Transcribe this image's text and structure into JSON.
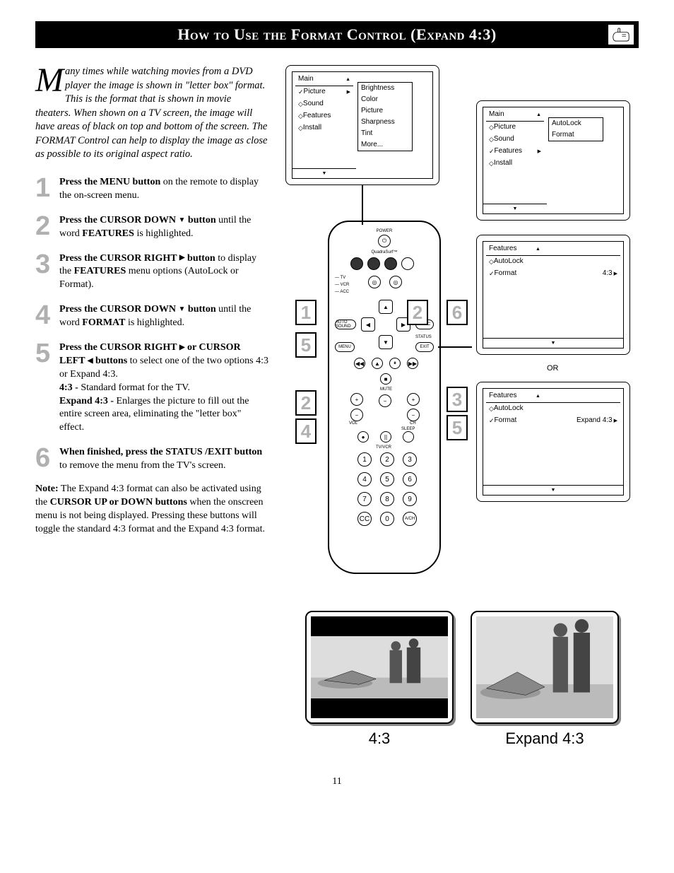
{
  "header": {
    "title": "How to Use the Format Control (Expand 4:3)"
  },
  "intro": {
    "dropcap": "M",
    "text": "any times while watching movies from a DVD player the image is shown in \"letter box\" format. This is the format that is shown in movie theaters. When shown on a TV screen, the image will have areas of black on top and bottom of the screen. The FORMAT Control can help to display the image as close as possible to its original aspect ratio."
  },
  "steps": [
    {
      "num": "1",
      "html": "<span class=\"bold\">Press the MENU button</span> on the remote to display the on-screen menu."
    },
    {
      "num": "2",
      "html": "<span class=\"bold\">Press the CURSOR DOWN <span class=\"tri\">▼</span> button</span> until the word <span class=\"bold\">FEATURES</span> is highlighted."
    },
    {
      "num": "3",
      "html": "<span class=\"bold\">Press the CURSOR RIGHT <span class=\"tri\">▶</span> button</span> to display the <span class=\"bold\">FEATURES</span> menu options (AutoLock or Format)."
    },
    {
      "num": "4",
      "html": "<span class=\"bold\">Press the CURSOR DOWN <span class=\"tri\">▼</span> button</span> until the word <span class=\"bold\">FORMAT</span> is highlighted."
    },
    {
      "num": "5",
      "html": "<span class=\"bold\">Press the CURSOR RIGHT <span class=\"tri\">▶</span> or CURSOR LEFT <span class=\"tri\">◀</span> buttons</span> to select one of the two options 4:3 or Expand 4:3.<br><span class=\"bold\">4:3 - </span>Standard format for the TV.<br><span class=\"bold\">Expand 4:3 - </span>Enlarges the picture to fill out the entire screen area, eliminating the \"letter box\" effect."
    },
    {
      "num": "6",
      "html": "<span class=\"bold\">When finished, press the STATUS /EXIT button</span> to remove the menu from the TV's screen."
    }
  ],
  "note": {
    "label": "Note:",
    "text": " The Expand 4:3 format can also be activated using the <span class=\"bold\">CURSOR UP or DOWN buttons</span> when the onscreen menu is not being displayed. Pressing these buttons will toggle the standard 4:3 format and the Expand 4:3 format."
  },
  "menus": {
    "main1": {
      "title": "Main",
      "items": [
        "Picture",
        "Sound",
        "Features",
        "Install"
      ],
      "submenu": [
        "Brightness",
        "Color",
        "Picture",
        "Sharpness",
        "Tint",
        "More..."
      ]
    },
    "main2": {
      "title": "Main",
      "items": [
        "Picture",
        "Sound",
        "Features",
        "Install"
      ],
      "submenu": [
        "AutoLock",
        "Format"
      ]
    },
    "features1": {
      "title": "Features",
      "items": [
        "AutoLock",
        "Format"
      ],
      "value": "4:3"
    },
    "features2": {
      "title": "Features",
      "items": [
        "AutoLock",
        "Format"
      ],
      "value": "Expand 4:3"
    },
    "or": "OR"
  },
  "remote": {
    "power": "POWER",
    "brand": "QuadraSurf™",
    "dev": [
      "TV",
      "VCR",
      "ACC"
    ],
    "autosound": "AUTO SOUND",
    "sync": "SYNC",
    "status": "STATUS",
    "menu": "MENU",
    "exit": "EXIT",
    "mute": "MUTE",
    "vol": "VOL",
    "ch": "CH",
    "sleep": "SLEEP",
    "tvvcr": "TV/VCR",
    "numbers": [
      "1",
      "2",
      "3",
      "4",
      "5",
      "6",
      "7",
      "8",
      "9",
      "CC",
      "0",
      "A/CH"
    ]
  },
  "callouts": {
    "c1": "1",
    "c2a": "2",
    "c2b": "2",
    "c3": "3",
    "c4": "4",
    "c5a": "5",
    "c5b": "5",
    "c6": "6"
  },
  "compare": {
    "left": "4:3",
    "right": "Expand 4:3"
  },
  "page": "11"
}
